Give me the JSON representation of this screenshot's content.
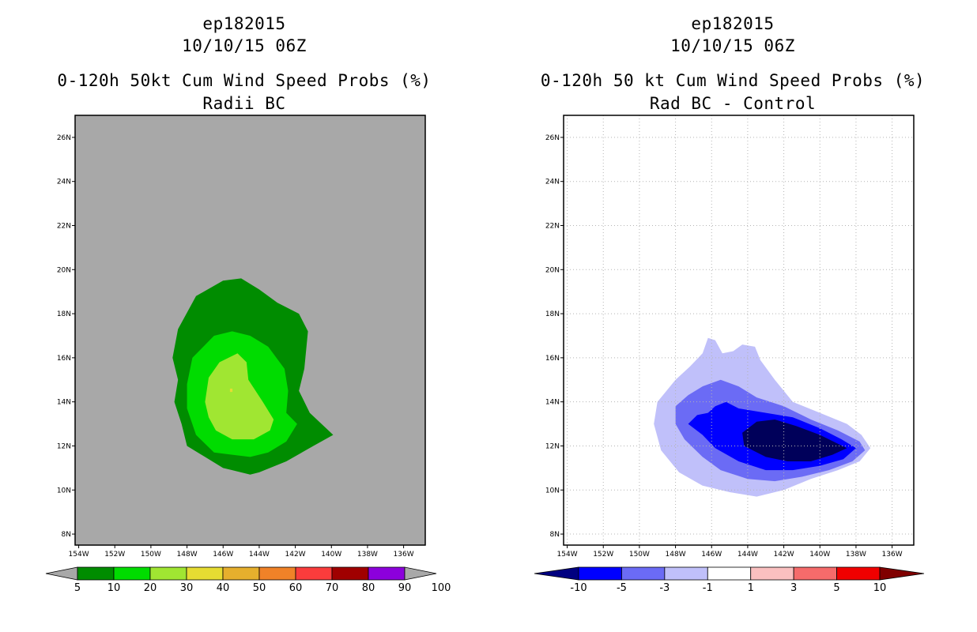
{
  "panels": [
    {
      "storm": "ep182015",
      "datetime": "10/10/15 06Z",
      "title": "0-120h 50kt Cum Wind Speed Probs (%)",
      "subtitle": "Radii BC"
    },
    {
      "storm": "ep182015",
      "datetime": "10/10/15 06Z",
      "title": "0-120h 50 kt Cum Wind Speed Probs (%)",
      "subtitle": "Rad BC - Control"
    }
  ],
  "chart_data": [
    {
      "type": "contour-map",
      "title": "0-120h 50kt Cum Wind Speed Probs (%)",
      "subtitle": "Radii BC",
      "x_ticks": [
        "154W",
        "152W",
        "150W",
        "148W",
        "146W",
        "144W",
        "142W",
        "140W",
        "138W",
        "136W"
      ],
      "y_ticks": [
        "8N",
        "10N",
        "12N",
        "14N",
        "16N",
        "18N",
        "20N",
        "22N",
        "24N",
        "26N"
      ],
      "xlim": [
        -154.2,
        -134.8
      ],
      "ylim": [
        7.5,
        27.0
      ],
      "background": "#a8a8a8",
      "grid": false,
      "colorbar": {
        "labels": [
          "5",
          "10",
          "20",
          "30",
          "40",
          "50",
          "60",
          "70",
          "80",
          "90",
          "100"
        ],
        "colors": [
          "#008c00",
          "#00dc00",
          "#a0e632",
          "#e6dc32",
          "#e6af2d",
          "#f08228",
          "#fa3c3c",
          "#a00000",
          "#8c00dc"
        ],
        "end_color": "#a8a8a8"
      },
      "contours": [
        {
          "level": 5,
          "color": "#008c00",
          "points": [
            [
              -147.5,
              18.8
            ],
            [
              -146.0,
              19.5
            ],
            [
              -145.0,
              19.6
            ],
            [
              -144.0,
              19.1
            ],
            [
              -143.0,
              18.5
            ],
            [
              -141.8,
              18.0
            ],
            [
              -141.3,
              17.2
            ],
            [
              -141.5,
              15.5
            ],
            [
              -141.8,
              14.5
            ],
            [
              -141.2,
              13.5
            ],
            [
              -139.9,
              12.5
            ],
            [
              -141.0,
              12.0
            ],
            [
              -142.5,
              11.3
            ],
            [
              -144.0,
              10.8
            ],
            [
              -144.5,
              10.7
            ],
            [
              -145.5,
              10.9
            ],
            [
              -146.0,
              11.0
            ],
            [
              -147.0,
              11.5
            ],
            [
              -148.0,
              12.0
            ],
            [
              -148.3,
              13.0
            ],
            [
              -148.7,
              14.0
            ],
            [
              -148.5,
              15.0
            ],
            [
              -148.8,
              16.0
            ],
            [
              -148.5,
              17.3
            ]
          ]
        },
        {
          "level": 10,
          "color": "#00dc00",
          "points": [
            [
              -146.5,
              17.0
            ],
            [
              -145.5,
              17.2
            ],
            [
              -144.5,
              17.0
            ],
            [
              -143.5,
              16.5
            ],
            [
              -142.6,
              15.5
            ],
            [
              -142.4,
              14.5
            ],
            [
              -142.5,
              13.5
            ],
            [
              -141.9,
              13.0
            ],
            [
              -142.5,
              12.2
            ],
            [
              -143.5,
              11.7
            ],
            [
              -144.5,
              11.5
            ],
            [
              -145.5,
              11.6
            ],
            [
              -146.5,
              11.7
            ],
            [
              -147.5,
              12.5
            ],
            [
              -148.0,
              13.7
            ],
            [
              -148.0,
              14.8
            ],
            [
              -147.7,
              16.0
            ]
          ]
        },
        {
          "level": 20,
          "color": "#a0e632",
          "points": [
            [
              -146.2,
              15.8
            ],
            [
              -145.2,
              16.2
            ],
            [
              -144.7,
              15.8
            ],
            [
              -144.6,
              15.0
            ],
            [
              -143.8,
              14.0
            ],
            [
              -143.2,
              13.2
            ],
            [
              -143.4,
              12.7
            ],
            [
              -144.3,
              12.3
            ],
            [
              -145.5,
              12.3
            ],
            [
              -146.4,
              12.7
            ],
            [
              -146.8,
              13.3
            ],
            [
              -147.0,
              14.0
            ],
            [
              -146.8,
              15.1
            ]
          ]
        },
        {
          "level": 30,
          "color": "#e6dc32",
          "points": [
            [
              -145.62,
              14.6
            ],
            [
              -145.48,
              14.6
            ],
            [
              -145.48,
              14.45
            ],
            [
              -145.62,
              14.45
            ]
          ]
        }
      ]
    },
    {
      "type": "contour-map",
      "title": "0-120h 50 kt Cum Wind Speed Probs (%)",
      "subtitle": "Rad BC - Control",
      "x_ticks": [
        "154W",
        "152W",
        "150W",
        "148W",
        "146W",
        "144W",
        "142W",
        "140W",
        "138W",
        "136W"
      ],
      "y_ticks": [
        "8N",
        "10N",
        "12N",
        "14N",
        "16N",
        "18N",
        "20N",
        "22N",
        "24N",
        "26N"
      ],
      "xlim": [
        -154.2,
        -134.8
      ],
      "ylim": [
        7.5,
        27.0
      ],
      "background": "#ffffff",
      "grid": true,
      "colorbar": {
        "labels": [
          "-10",
          "-5",
          "-3",
          "-1",
          "1",
          "3",
          "5",
          "10"
        ],
        "colors": [
          "#0000ff",
          "#6b6bf5",
          "#c0c0fa",
          "#ffffff",
          "#fac0c0",
          "#f56b6b",
          "#f00000"
        ],
        "low_end_color": "#000080",
        "high_end_color": "#800000"
      },
      "contours": [
        {
          "level": -1,
          "color": "#c0c0fa",
          "points": [
            [
              -146.5,
              16.2
            ],
            [
              -146.2,
              16.9
            ],
            [
              -145.8,
              16.8
            ],
            [
              -145.4,
              16.2
            ],
            [
              -144.8,
              16.3
            ],
            [
              -144.3,
              16.6
            ],
            [
              -143.6,
              16.5
            ],
            [
              -143.3,
              15.9
            ],
            [
              -142.5,
              15.0
            ],
            [
              -141.5,
              14.0
            ],
            [
              -140.0,
              13.5
            ],
            [
              -138.5,
              13.0
            ],
            [
              -137.7,
              12.5
            ],
            [
              -137.2,
              11.9
            ],
            [
              -137.8,
              11.3
            ],
            [
              -139.0,
              10.9
            ],
            [
              -140.5,
              10.5
            ],
            [
              -142.0,
              10.0
            ],
            [
              -143.5,
              9.7
            ],
            [
              -145.0,
              9.9
            ],
            [
              -146.5,
              10.2
            ],
            [
              -147.8,
              10.8
            ],
            [
              -148.8,
              11.8
            ],
            [
              -149.2,
              13.0
            ],
            [
              -149.0,
              14.0
            ],
            [
              -148.0,
              15.0
            ],
            [
              -147.2,
              15.6
            ]
          ]
        },
        {
          "level": -3,
          "color": "#6b6bf5",
          "points": [
            [
              -146.5,
              14.7
            ],
            [
              -145.5,
              15.0
            ],
            [
              -144.5,
              14.7
            ],
            [
              -143.5,
              14.2
            ],
            [
              -142.0,
              13.8
            ],
            [
              -140.5,
              13.2
            ],
            [
              -139.0,
              12.7
            ],
            [
              -137.8,
              12.2
            ],
            [
              -137.5,
              11.8
            ],
            [
              -138.2,
              11.3
            ],
            [
              -139.5,
              10.9
            ],
            [
              -141.0,
              10.6
            ],
            [
              -142.5,
              10.4
            ],
            [
              -144.0,
              10.5
            ],
            [
              -145.5,
              10.9
            ],
            [
              -146.5,
              11.5
            ],
            [
              -147.5,
              12.3
            ],
            [
              -148.0,
              13.0
            ],
            [
              -148.0,
              13.8
            ],
            [
              -147.3,
              14.3
            ]
          ]
        },
        {
          "level": -5,
          "color": "#0000ff",
          "points": [
            [
              -145.8,
              13.8
            ],
            [
              -145.2,
              14.0
            ],
            [
              -144.5,
              13.7
            ],
            [
              -143.0,
              13.5
            ],
            [
              -141.5,
              13.3
            ],
            [
              -140.0,
              12.8
            ],
            [
              -138.8,
              12.3
            ],
            [
              -138.0,
              11.9
            ],
            [
              -138.7,
              11.4
            ],
            [
              -140.0,
              11.1
            ],
            [
              -141.5,
              10.9
            ],
            [
              -143.0,
              10.9
            ],
            [
              -144.5,
              11.3
            ],
            [
              -145.8,
              11.9
            ],
            [
              -146.5,
              12.5
            ],
            [
              -147.3,
              13.0
            ],
            [
              -146.8,
              13.4
            ],
            [
              -146.2,
              13.5
            ]
          ]
        },
        {
          "level": -10,
          "color": "#00005a",
          "points": [
            [
              -143.5,
              13.1
            ],
            [
              -142.5,
              13.2
            ],
            [
              -141.3,
              12.9
            ],
            [
              -140.0,
              12.5
            ],
            [
              -139.0,
              12.1
            ],
            [
              -138.5,
              11.9
            ],
            [
              -139.3,
              11.6
            ],
            [
              -140.5,
              11.3
            ],
            [
              -141.8,
              11.3
            ],
            [
              -143.0,
              11.5
            ],
            [
              -144.2,
              12.0
            ],
            [
              -144.3,
              12.6
            ]
          ]
        }
      ]
    }
  ]
}
